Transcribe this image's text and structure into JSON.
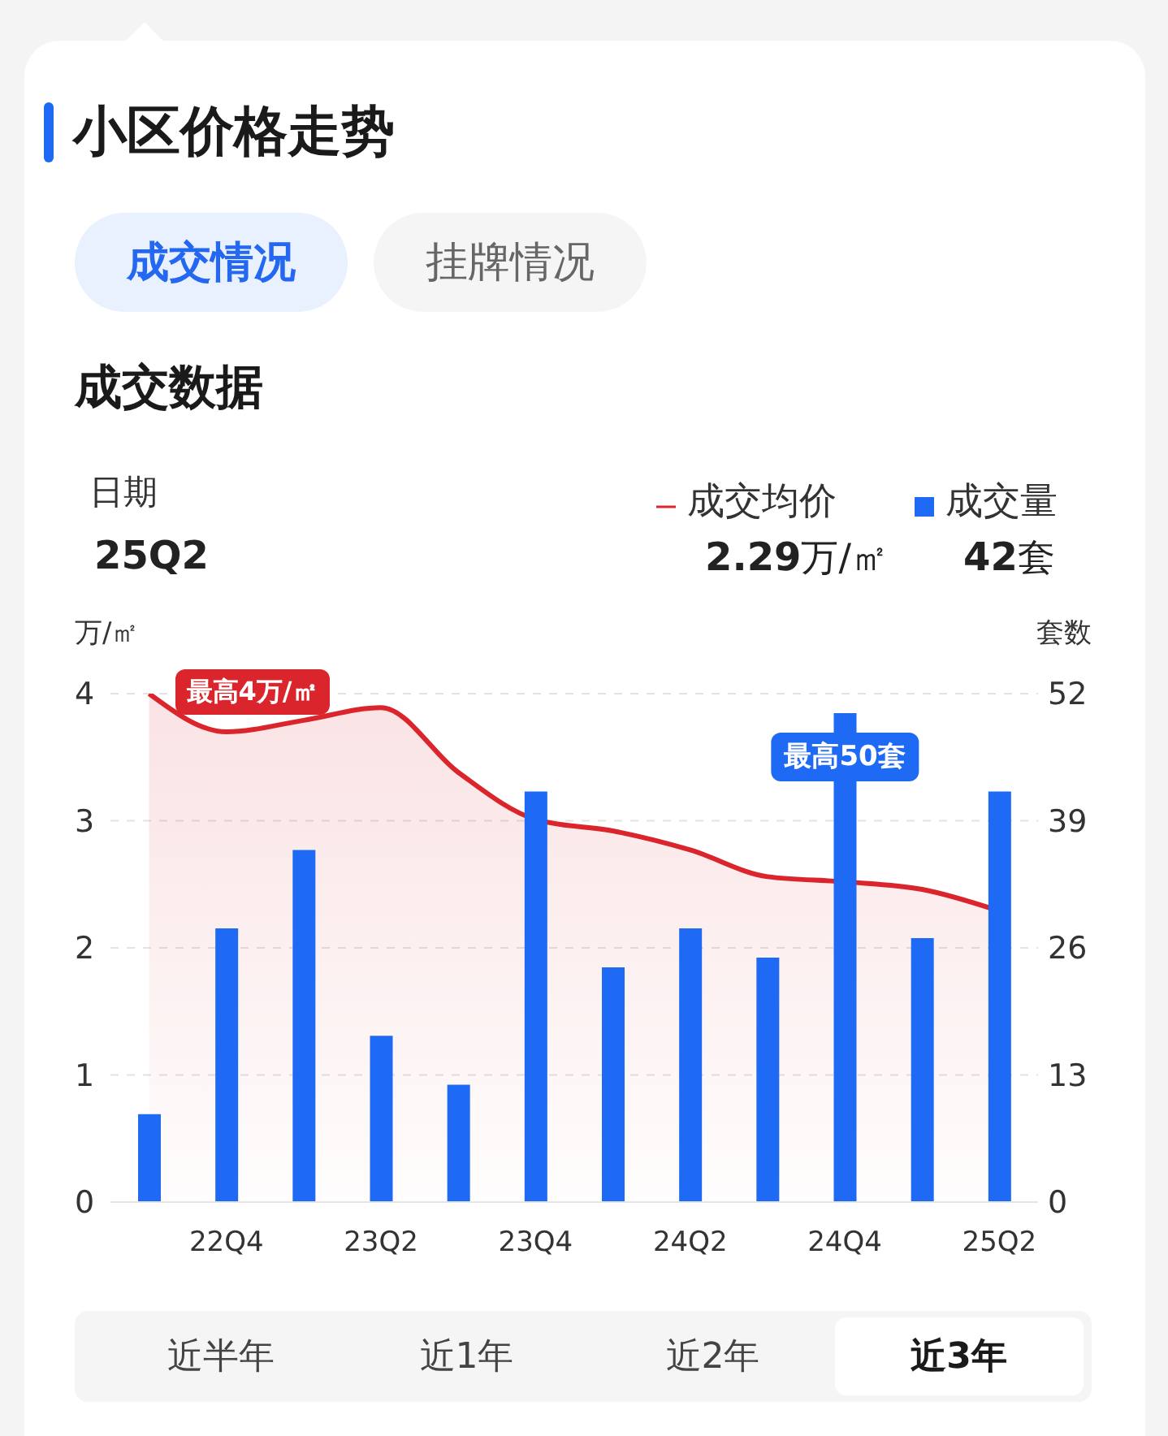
{
  "chart_data": {
    "type": "bar",
    "title": "小区价格走势",
    "subtitle": "成交数据",
    "categories": [
      null,
      "22Q4",
      null,
      "23Q2",
      null,
      "23Q4",
      null,
      "24Q2",
      null,
      "24Q4",
      null,
      "25Q2"
    ],
    "series": [
      {
        "name": "成交均价",
        "type": "area",
        "color": "#d9252b",
        "values": [
          4,
          3.7,
          3.79,
          3.89,
          3.38,
          3.01,
          2.92,
          2.77,
          2.56,
          2.52,
          2.46,
          2.29
        ]
      },
      {
        "name": "成交量",
        "axis": "y2",
        "color": "#1e6af5",
        "values": [
          9,
          28,
          36,
          17,
          12,
          42,
          24,
          28,
          25,
          50,
          27,
          42
        ]
      }
    ],
    "ylabel": "万/㎡",
    "y2label": "套数",
    "ylim": [
      0,
      4
    ],
    "yticks": [
      0,
      1,
      2,
      3,
      4
    ],
    "y2lim": [
      0,
      52
    ],
    "y2ticks": [
      0,
      13,
      26,
      39,
      52
    ],
    "grid": "y",
    "legend": "top right",
    "annotations": [
      "成交情况",
      "挂牌情况",
      "日期",
      "25Q2",
      "2.29万/㎡",
      "42套",
      "近半年",
      "近1年",
      "近2年",
      "近3年",
      "最高4万/㎡",
      "最高50套"
    ]
  }
}
